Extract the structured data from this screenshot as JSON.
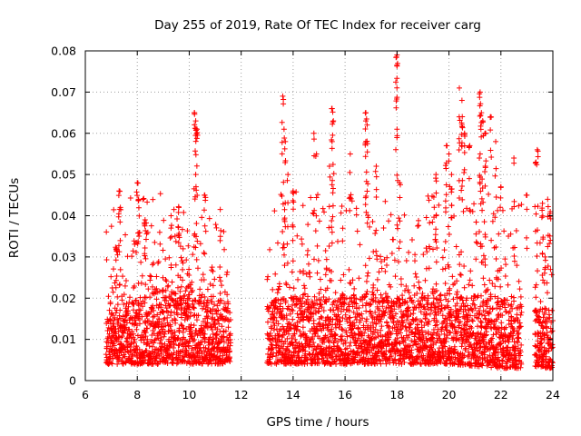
{
  "chart_data": {
    "type": "scatter",
    "title": "Day 255 of 2019, Rate Of TEC Index for receiver carg",
    "xlabel": "GPS time / hours",
    "ylabel": "ROTI / TECUs",
    "xlim": [
      6,
      24
    ],
    "ylim": [
      0,
      0.08
    ],
    "xticks": [
      6,
      8,
      10,
      12,
      14,
      16,
      18,
      20,
      22,
      24
    ],
    "yticks": [
      0,
      0.01,
      0.02,
      0.03,
      0.04,
      0.05,
      0.06,
      0.07,
      0.08
    ],
    "xtick_labels": [
      "6",
      "8",
      "10",
      "12",
      "14",
      "16",
      "18",
      "20",
      "22",
      "24"
    ],
    "ytick_labels": [
      "0",
      "0.01",
      "0.02",
      "0.03",
      "0.04",
      "0.05",
      "0.06",
      "0.07",
      "0.08"
    ],
    "grid": true,
    "marker": "+",
    "marker_color": "#ff0000",
    "series": [
      {
        "name": "ROTI",
        "segments": [
          [
            6.8,
            11.6
          ],
          [
            13.0,
            22.8
          ],
          [
            23.3,
            24.0
          ]
        ],
        "baseline": [
          {
            "x": 7.0,
            "y_min": 0.004,
            "y_max": 0.017
          },
          {
            "x": 9.0,
            "y_min": 0.004,
            "y_max": 0.022
          },
          {
            "x": 11.0,
            "y_min": 0.004,
            "y_max": 0.018
          },
          {
            "x": 14.0,
            "y_min": 0.004,
            "y_max": 0.02
          },
          {
            "x": 16.0,
            "y_min": 0.004,
            "y_max": 0.02
          },
          {
            "x": 18.0,
            "y_min": 0.004,
            "y_max": 0.02
          },
          {
            "x": 20.0,
            "y_min": 0.004,
            "y_max": 0.02
          },
          {
            "x": 22.0,
            "y_min": 0.003,
            "y_max": 0.02
          },
          {
            "x": 23.7,
            "y_min": 0.003,
            "y_max": 0.017
          }
        ],
        "notable_points": [
          {
            "x": 7.3,
            "y": 0.046
          },
          {
            "x": 7.35,
            "y": 0.042
          },
          {
            "x": 7.2,
            "y": 0.032
          },
          {
            "x": 8.0,
            "y": 0.048
          },
          {
            "x": 8.05,
            "y": 0.044
          },
          {
            "x": 8.3,
            "y": 0.039
          },
          {
            "x": 9.3,
            "y": 0.04
          },
          {
            "x": 9.6,
            "y": 0.042
          },
          {
            "x": 10.2,
            "y": 0.065
          },
          {
            "x": 10.25,
            "y": 0.063
          },
          {
            "x": 10.3,
            "y": 0.061
          },
          {
            "x": 10.25,
            "y": 0.05
          },
          {
            "x": 10.6,
            "y": 0.045
          },
          {
            "x": 11.2,
            "y": 0.035
          },
          {
            "x": 13.6,
            "y": 0.069
          },
          {
            "x": 13.65,
            "y": 0.061
          },
          {
            "x": 13.7,
            "y": 0.058
          },
          {
            "x": 13.8,
            "y": 0.05
          },
          {
            "x": 14.0,
            "y": 0.046
          },
          {
            "x": 14.8,
            "y": 0.06
          },
          {
            "x": 14.9,
            "y": 0.055
          },
          {
            "x": 15.5,
            "y": 0.066
          },
          {
            "x": 15.55,
            "y": 0.063
          },
          {
            "x": 15.5,
            "y": 0.058
          },
          {
            "x": 15.4,
            "y": 0.052
          },
          {
            "x": 16.2,
            "y": 0.055
          },
          {
            "x": 16.8,
            "y": 0.065
          },
          {
            "x": 16.85,
            "y": 0.062
          },
          {
            "x": 16.8,
            "y": 0.058
          },
          {
            "x": 17.2,
            "y": 0.052
          },
          {
            "x": 18.0,
            "y": 0.079
          },
          {
            "x": 17.98,
            "y": 0.0785
          },
          {
            "x": 18.0,
            "y": 0.061
          },
          {
            "x": 18.1,
            "y": 0.048
          },
          {
            "x": 19.5,
            "y": 0.05
          },
          {
            "x": 19.9,
            "y": 0.057
          },
          {
            "x": 20.0,
            "y": 0.055
          },
          {
            "x": 20.1,
            "y": 0.05
          },
          {
            "x": 20.4,
            "y": 0.071
          },
          {
            "x": 20.5,
            "y": 0.068
          },
          {
            "x": 20.5,
            "y": 0.062
          },
          {
            "x": 20.6,
            "y": 0.06
          },
          {
            "x": 20.8,
            "y": 0.057
          },
          {
            "x": 21.2,
            "y": 0.07
          },
          {
            "x": 21.25,
            "y": 0.065
          },
          {
            "x": 21.3,
            "y": 0.063
          },
          {
            "x": 21.4,
            "y": 0.06
          },
          {
            "x": 21.2,
            "y": 0.055
          },
          {
            "x": 21.6,
            "y": 0.064
          },
          {
            "x": 21.8,
            "y": 0.058
          },
          {
            "x": 21.4,
            "y": 0.052
          },
          {
            "x": 22.0,
            "y": 0.047
          },
          {
            "x": 22.5,
            "y": 0.054
          },
          {
            "x": 23.0,
            "y": 0.045
          },
          {
            "x": 23.4,
            "y": 0.056
          },
          {
            "x": 23.35,
            "y": 0.053
          },
          {
            "x": 23.6,
            "y": 0.043
          },
          {
            "x": 23.8,
            "y": 0.044
          },
          {
            "x": 23.7,
            "y": 0.03
          },
          {
            "x": 23.9,
            "y": 0.041
          }
        ]
      }
    ]
  }
}
